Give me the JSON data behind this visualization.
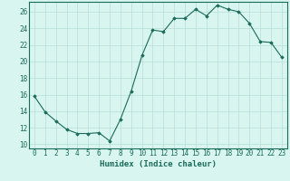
{
  "x": [
    0,
    1,
    2,
    3,
    4,
    5,
    6,
    7,
    8,
    9,
    10,
    11,
    12,
    13,
    14,
    15,
    16,
    17,
    18,
    19,
    20,
    21,
    22,
    23
  ],
  "y": [
    15.8,
    13.9,
    12.8,
    11.8,
    11.3,
    11.3,
    11.4,
    10.4,
    13.0,
    16.4,
    20.7,
    23.8,
    23.6,
    25.2,
    25.2,
    26.3,
    25.5,
    26.8,
    26.3,
    26.0,
    24.6,
    22.4,
    22.3,
    20.5
  ],
  "xlabel": "Humidex (Indice chaleur)",
  "xlim": [
    -0.5,
    23.5
  ],
  "ylim": [
    9.5,
    27.2
  ],
  "yticks": [
    10,
    12,
    14,
    16,
    18,
    20,
    22,
    24,
    26
  ],
  "xticks": [
    0,
    1,
    2,
    3,
    4,
    5,
    6,
    7,
    8,
    9,
    10,
    11,
    12,
    13,
    14,
    15,
    16,
    17,
    18,
    19,
    20,
    21,
    22,
    23
  ],
  "line_color": "#1a6b5a",
  "marker": "D",
  "marker_size": 1.8,
  "bg_color": "#d8f5f0",
  "grid_color": "#b8ddd8",
  "tick_label_fontsize": 5.5,
  "xlabel_fontsize": 6.5
}
